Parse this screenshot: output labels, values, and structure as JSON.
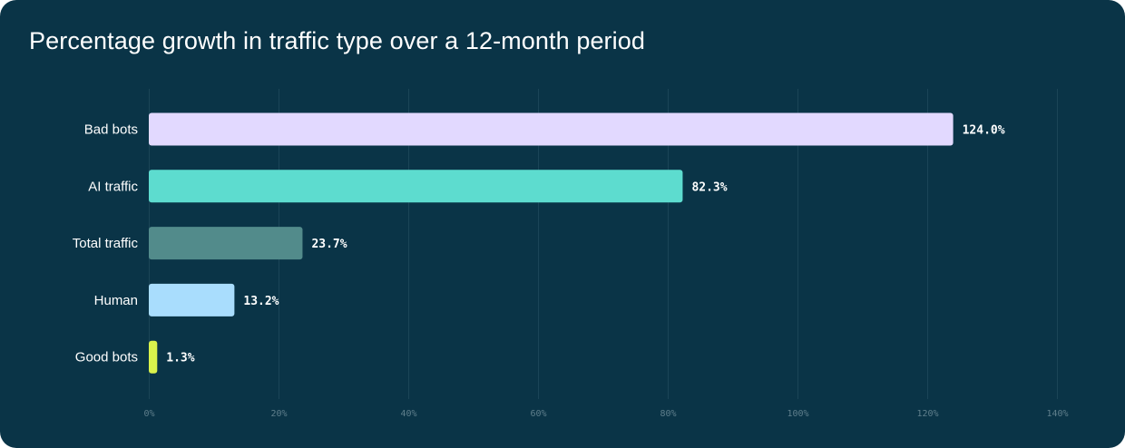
{
  "chart_data": {
    "type": "bar",
    "orientation": "horizontal",
    "title": "Percentage growth in traffic type over a 12-month period",
    "categories": [
      "Bad bots",
      "AI traffic",
      "Total traffic",
      "Human",
      "Good bots"
    ],
    "values": [
      124.0,
      82.3,
      23.7,
      13.2,
      1.3
    ],
    "value_labels": [
      "124.0%",
      "82.3%",
      "23.7%",
      "13.2%",
      "1.3%"
    ],
    "colors": [
      "#e2d9ff",
      "#5ddccf",
      "#528b8b",
      "#a9ddfd",
      "#d9f24c"
    ],
    "xlim": [
      0,
      140
    ],
    "xticks": [
      0,
      20,
      40,
      60,
      80,
      100,
      120,
      140
    ],
    "xtick_labels": [
      "0%",
      "20%",
      "40%",
      "60%",
      "80%",
      "100%",
      "120%",
      "140%"
    ],
    "grid": true,
    "xlabel": "",
    "ylabel": ""
  },
  "theme": {
    "background": "#0a3447",
    "text": "#ffffff",
    "gridline": "#1b4557",
    "tick_text": "#5f7f8c"
  }
}
